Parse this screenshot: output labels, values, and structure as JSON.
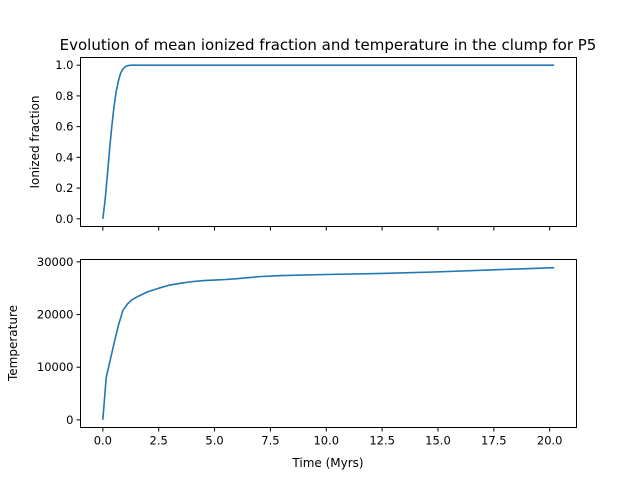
{
  "chart_data": [
    {
      "type": "line",
      "title": "Evolution of mean ionized fraction and temperature in the clump for P5",
      "xlabel": "",
      "ylabel": "Ionized fraction",
      "xlim": [
        -1.0,
        21.2
      ],
      "ylim": [
        -0.05,
        1.05
      ],
      "xticks": [
        0,
        2.5,
        5,
        7.5,
        10,
        12.5,
        15,
        17.5,
        20
      ],
      "yticks": [
        0.0,
        0.2,
        0.4,
        0.6,
        0.8,
        1.0
      ],
      "ytick_labels": [
        "0.0",
        "0.2",
        "0.4",
        "0.6",
        "0.8",
        "1.0"
      ],
      "show_xtick_labels": false,
      "color": "#1f77b4",
      "grid": false,
      "series": [
        {
          "x": [
            0,
            0.1,
            0.2,
            0.3,
            0.4,
            0.5,
            0.6,
            0.7,
            0.8,
            0.9,
            1.0,
            1.1,
            1.2,
            1.3,
            1.5,
            2.0,
            5.0,
            10.0,
            15.0,
            20.2
          ],
          "y": [
            0.0,
            0.12,
            0.28,
            0.45,
            0.6,
            0.73,
            0.83,
            0.9,
            0.95,
            0.975,
            0.99,
            0.996,
            0.999,
            1.0,
            1.0,
            1.0,
            1.0,
            1.0,
            1.0,
            1.0
          ]
        }
      ]
    },
    {
      "type": "line",
      "title": "",
      "xlabel": "Time (Myrs)",
      "ylabel": "Temperature",
      "xlim": [
        -1.0,
        21.2
      ],
      "ylim": [
        -1450,
        30450
      ],
      "xticks": [
        0,
        2.5,
        5,
        7.5,
        10,
        12.5,
        15,
        17.5,
        20
      ],
      "xtick_labels": [
        "0.0",
        "2.5",
        "5.0",
        "7.5",
        "10.0",
        "12.5",
        "15.0",
        "17.5",
        "20.0"
      ],
      "yticks": [
        0,
        10000,
        20000,
        30000
      ],
      "ytick_labels": [
        "0",
        "10000",
        "20000",
        "30000"
      ],
      "color": "#1f77b4",
      "grid": false,
      "series": [
        {
          "x": [
            0,
            0.15,
            0.3,
            0.5,
            0.7,
            0.9,
            1.1,
            1.3,
            1.6,
            2.0,
            2.5,
            3.0,
            3.5,
            4.0,
            4.5,
            5.0,
            5.5,
            6.0,
            7.0,
            8.0,
            10.0,
            12.5,
            15.0,
            17.5,
            20.2
          ],
          "y": [
            0,
            8000,
            10800,
            14500,
            18000,
            20800,
            22000,
            22800,
            23500,
            24300,
            25000,
            25600,
            25950,
            26250,
            26450,
            26550,
            26650,
            26800,
            27200,
            27400,
            27600,
            27800,
            28100,
            28500,
            28900
          ]
        }
      ]
    }
  ]
}
